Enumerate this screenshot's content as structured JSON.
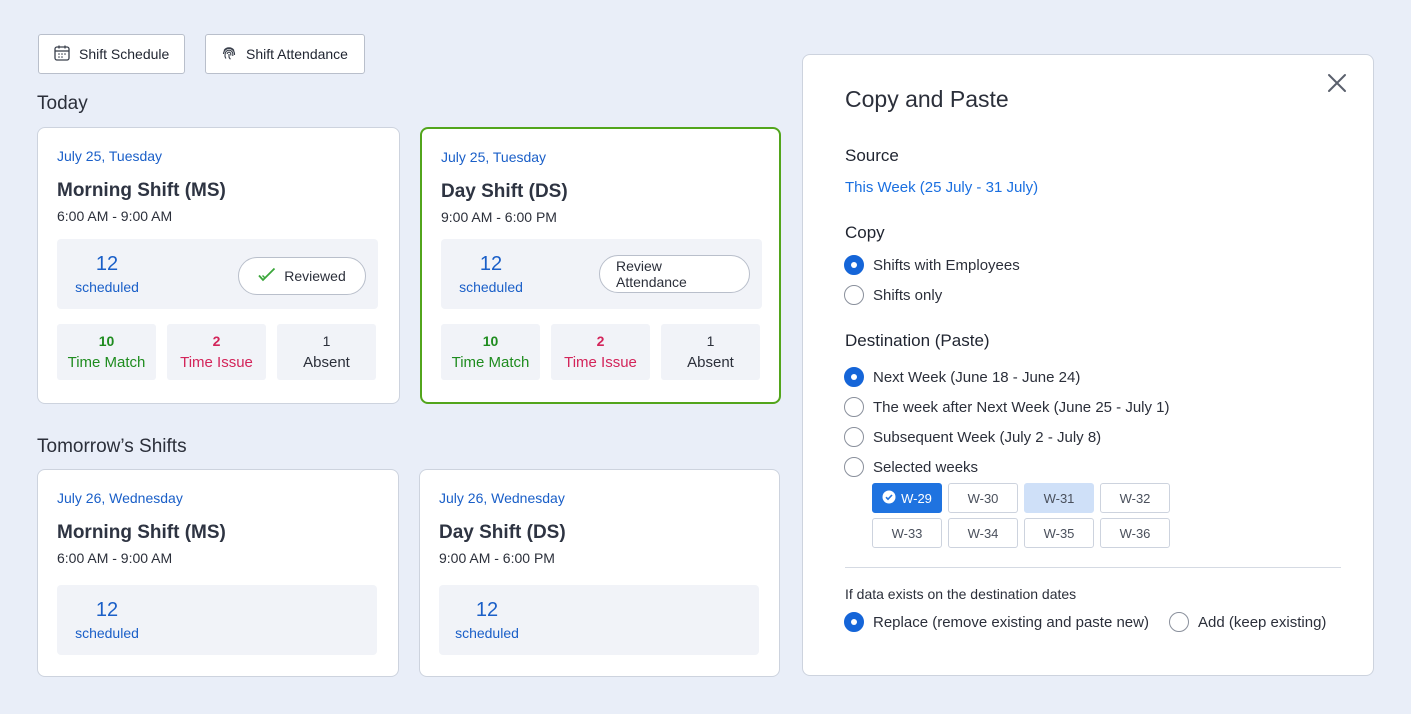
{
  "toolbar": {
    "shift_schedule_label": "Shift Schedule",
    "shift_attendance_label": "Shift Attendance"
  },
  "today": {
    "title": "Today",
    "cards": [
      {
        "date": "July 25, Tuesday",
        "name": "Morning Shift (MS)",
        "time": "6:00 AM - 9:00 AM",
        "scheduled_count": "12",
        "scheduled_label": "scheduled",
        "action_label": "Reviewed",
        "stats": [
          {
            "value": "10",
            "label": "Time Match"
          },
          {
            "value": "2",
            "label": "Time Issue"
          },
          {
            "value": "1",
            "label": "Absent"
          }
        ]
      },
      {
        "date": "July 25, Tuesday",
        "name": "Day Shift (DS)",
        "time": "9:00 AM - 6:00 PM",
        "scheduled_count": "12",
        "scheduled_label": "scheduled",
        "action_label": "Review Attendance",
        "stats": [
          {
            "value": "10",
            "label": "Time Match"
          },
          {
            "value": "2",
            "label": "Time Issue"
          },
          {
            "value": "1",
            "label": "Absent"
          }
        ]
      }
    ]
  },
  "tomorrow": {
    "title": "Tomorrow’s Shifts",
    "cards": [
      {
        "date": "July 26, Wednesday",
        "name": "Morning Shift (MS)",
        "time": "6:00 AM - 9:00 AM",
        "scheduled_count": "12",
        "scheduled_label": "scheduled"
      },
      {
        "date": "July 26, Wednesday",
        "name": "Day Shift (DS)",
        "time": "9:00 AM - 6:00 PM",
        "scheduled_count": "12",
        "scheduled_label": "scheduled"
      }
    ]
  },
  "panel": {
    "title": "Copy and Paste",
    "source_label": "Source",
    "source_value": "This Week (25 July - 31 July)",
    "copy_label": "Copy",
    "copy_options": [
      {
        "label": "Shifts with Employees",
        "selected": true
      },
      {
        "label": "Shifts only",
        "selected": false
      }
    ],
    "destination_label": "Destination (Paste)",
    "destination_options": [
      {
        "label": "Next Week (June 18 - June 24)",
        "selected": true
      },
      {
        "label": "The week after Next Week (June 25 - July 1)",
        "selected": false
      },
      {
        "label": "Subsequent Week (July 2 - July 8)",
        "selected": false
      },
      {
        "label": "Selected weeks",
        "selected": false
      }
    ],
    "weeks": [
      {
        "label": "W-29",
        "state": "selected"
      },
      {
        "label": "W-30",
        "state": "normal"
      },
      {
        "label": "W-31",
        "state": "highlighted"
      },
      {
        "label": "W-32",
        "state": "normal"
      },
      {
        "label": "W-33",
        "state": "normal"
      },
      {
        "label": "W-34",
        "state": "normal"
      },
      {
        "label": "W-35",
        "state": "normal"
      },
      {
        "label": "W-36",
        "state": "normal"
      }
    ],
    "conflict_note": "If data exists on the destination dates",
    "conflict_options": [
      {
        "label": "Replace (remove existing and paste new)",
        "selected": true
      },
      {
        "label": "Add (keep existing)",
        "selected": false
      }
    ]
  },
  "colors": {
    "accent": "#1565d8",
    "active_border": "#52a51c",
    "time_match": "#1f8c1f",
    "time_issue": "#d3245a"
  }
}
